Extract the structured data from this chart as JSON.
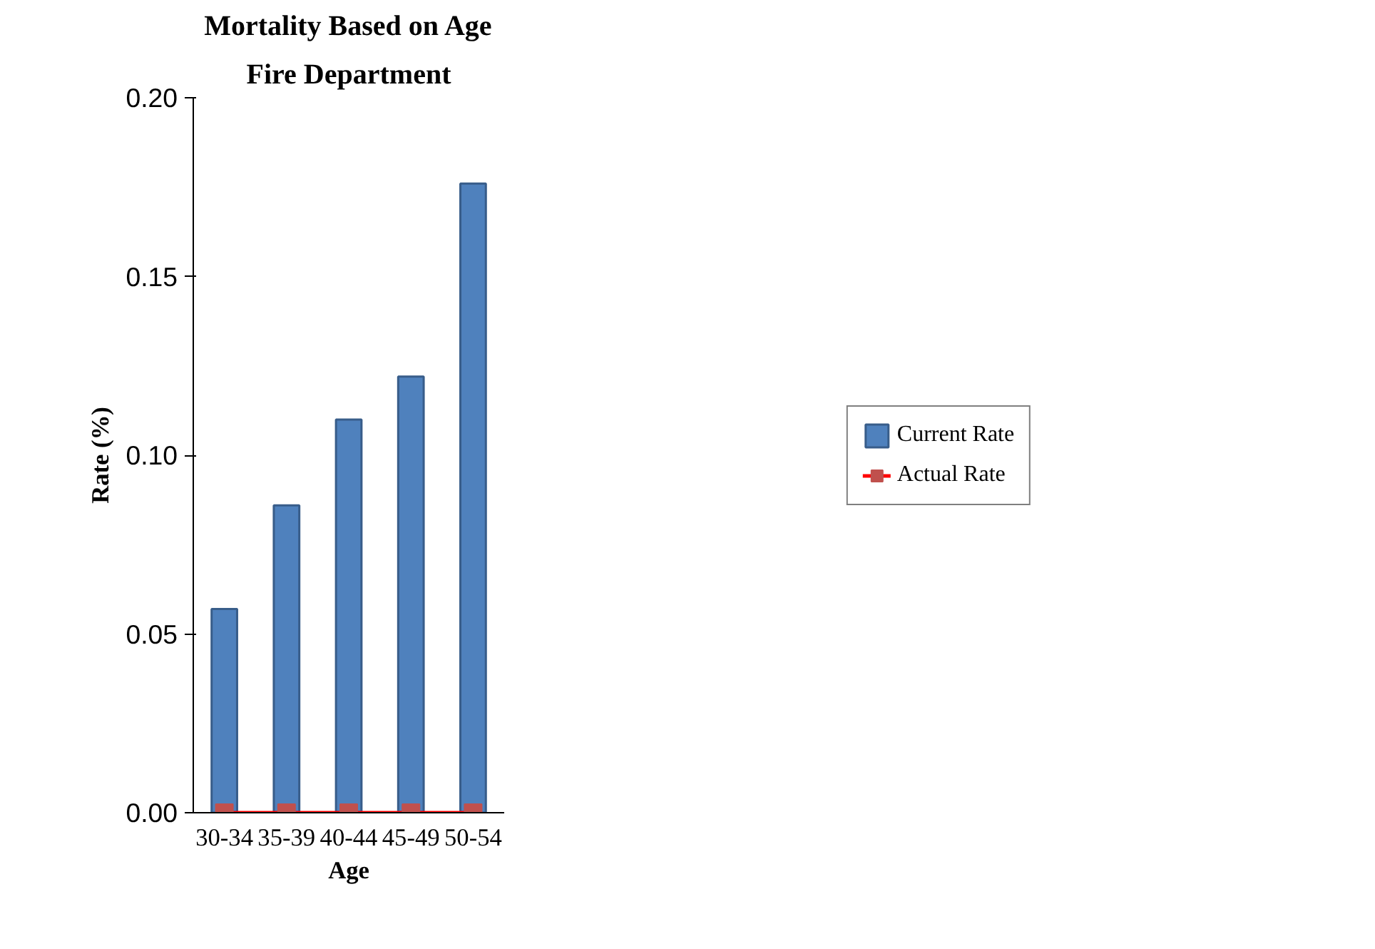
{
  "chart_data": {
    "type": "bar",
    "title": "Mortality Based on Age",
    "subtitle": "Fire Department",
    "xlabel": "Age",
    "ylabel": "Rate (%)",
    "categories": [
      "30-34",
      "35-39",
      "40-44",
      "45-49",
      "50-54"
    ],
    "series": [
      {
        "name": "Current Rate",
        "color": "#4f81bd",
        "values": [
          0.057,
          0.086,
          0.11,
          0.122,
          0.176
        ]
      },
      {
        "name": "Actual Rate",
        "type": "line",
        "color": "#ff0000",
        "marker": "square",
        "values": [
          0,
          0,
          0,
          0,
          0
        ]
      }
    ],
    "ylim": [
      0,
      0.2
    ],
    "yticks": [
      {
        "value": 0,
        "label": "0.00"
      },
      {
        "value": 0.05,
        "label": "0.05"
      },
      {
        "value": 0.1,
        "label": "0.10"
      },
      {
        "value": 0.15,
        "label": "0.15"
      },
      {
        "value": 0.2,
        "label": "0.20"
      }
    ],
    "grid": false,
    "legend": "right"
  }
}
